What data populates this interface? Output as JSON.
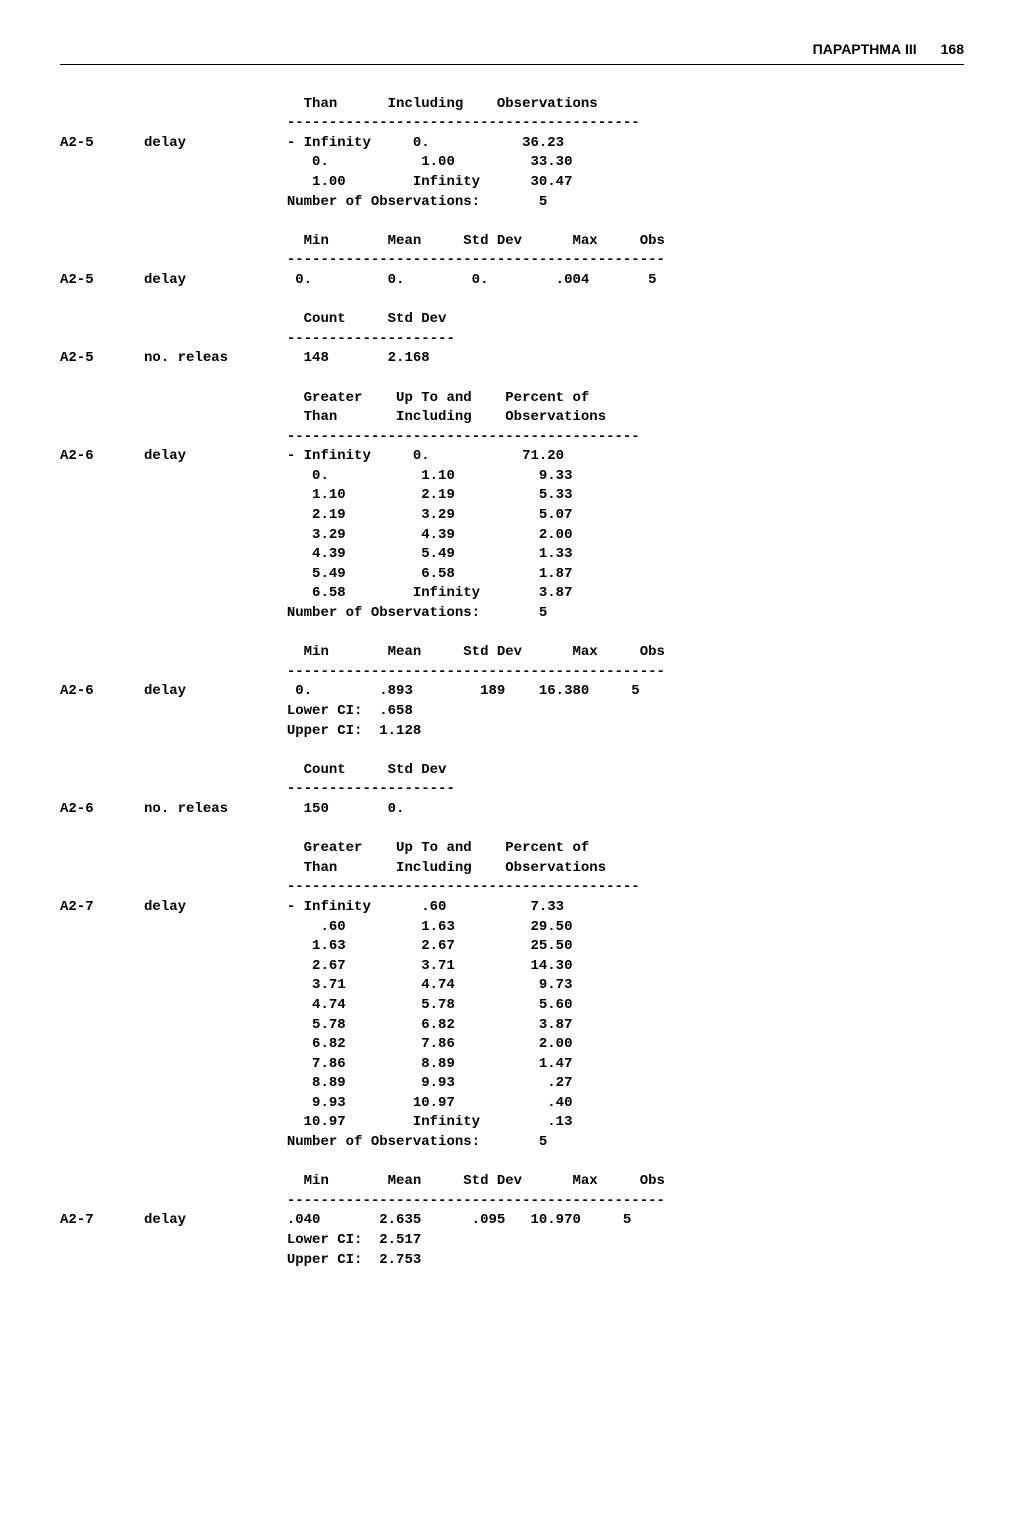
{
  "header": {
    "title": "ΠΑΡΑΡΤΗΜΑ III",
    "page": "168"
  },
  "hdr_dist3": "                             Than      Including    Observations",
  "dash_dist3": "                           ------------------------------------------",
  "a25d_row0": "A2-5      delay            - Infinity     0.           36.23",
  "a25d_row1": "                              0.           1.00         33.30",
  "a25d_row2": "                              1.00        Infinity      30.47",
  "a25d_nobs": "                           Number of Observations:       5",
  "stats_hdr": "                             Min       Mean     Std Dev      Max     Obs",
  "stats_dash": "                           ---------------------------------------------",
  "a25s_row": "A2-5      delay             0.         0.        0.        .004       5",
  "cnt_hdr": "                             Count     Std Dev",
  "cnt_dash": "                           --------------------",
  "a25r_row": "A2-5      no. releas         148       2.168",
  "hdr_dist": "                             Greater    Up To and    Percent of",
  "hdr_dist2": "                             Than       Including    Observations",
  "dash_dist": "                           ------------------------------------------",
  "a26d_row0": "A2-6      delay            - Infinity     0.           71.20",
  "a26d_row1": "                              0.           1.10          9.33",
  "a26d_row2": "                              1.10         2.19          5.33",
  "a26d_row3": "                              2.19         3.29          5.07",
  "a26d_row4": "                              3.29         4.39          2.00",
  "a26d_row5": "                              4.39         5.49          1.33",
  "a26d_row6": "                              5.49         6.58          1.87",
  "a26d_row7": "                              6.58        Infinity       3.87",
  "a26d_nobs": "                           Number of Observations:       5",
  "a26s_row": "A2-6      delay             0.        .893        189    16.380     5",
  "a26s_lci": "                           Lower CI:  .658",
  "a26s_uci": "                           Upper CI:  1.128",
  "a26r_row": "A2-6      no. releas         150       0.",
  "a27d_row0": "A2-7      delay            - Infinity      .60          7.33",
  "a27d_row1": "                               .60         1.63         29.50",
  "a27d_row2": "                              1.63         2.67         25.50",
  "a27d_row3": "                              2.67         3.71         14.30",
  "a27d_row4": "                              3.71         4.74          9.73",
  "a27d_row5": "                              4.74         5.78          5.60",
  "a27d_row6": "                              5.78         6.82          3.87",
  "a27d_row7": "                              6.82         7.86          2.00",
  "a27d_row8": "                              7.86         8.89          1.47",
  "a27d_row9": "                              8.89         9.93           .27",
  "a27d_row10": "                              9.93        10.97           .40",
  "a27d_row11": "                             10.97        Infinity        .13",
  "a27d_nobs": "                           Number of Observations:       5",
  "a27s_row": "A2-7      delay            .040       2.635      .095   10.970     5",
  "a27s_lci": "                           Lower CI:  2.517",
  "a27s_uci": "                           Upper CI:  2.753"
}
